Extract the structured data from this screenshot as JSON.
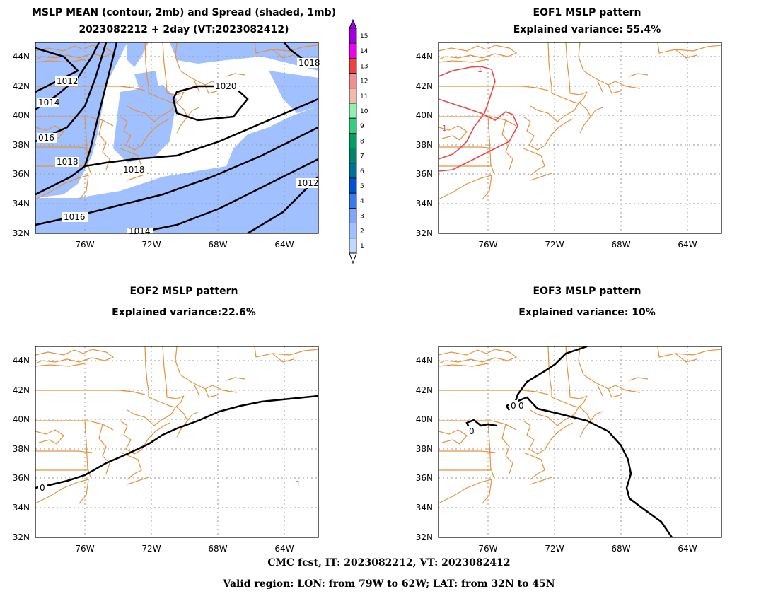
{
  "panels": [
    {
      "title_line1": "MSLP MEAN (contour, 2mb) and Spread (shaded, 1mb)",
      "title_line2": "2023082212 + 2day (VT:2023082412)"
    },
    {
      "title_line1": "EOF1 MSLP pattern",
      "title_line2": "Explained variance: 55.4%"
    },
    {
      "title_line1": "EOF2 MSLP pattern",
      "title_line2": "Explained variance:22.6%"
    },
    {
      "title_line1": "EOF3 MSLP pattern",
      "title_line2": "Explained variance: 10%"
    }
  ],
  "lat_labels": [
    "32N",
    "34N",
    "36N",
    "38N",
    "40N",
    "42N",
    "44N"
  ],
  "lon_labels": [
    "76W",
    "72W",
    "68W",
    "64W"
  ],
  "mean_contours": [
    {
      "value": 1012,
      "label": "1012"
    },
    {
      "value": 1014,
      "label": "1014"
    },
    {
      "value": 1016,
      "label": "1016"
    },
    {
      "value": 1018,
      "label": "1018"
    },
    {
      "value": 1020,
      "label": "1020"
    }
  ],
  "mean_contour_tags": [
    "1012",
    "1014",
    "016",
    "1018",
    "1018",
    "1020",
    "1018",
    "1016",
    "1014",
    "1012"
  ],
  "eof1_labels": [
    "1",
    "1"
  ],
  "eof2_labels": [
    "0",
    "1"
  ],
  "eof3_labels": [
    "0",
    "0",
    "0"
  ],
  "colorbar": {
    "labels": [
      "1",
      "2",
      "3",
      "4",
      "5",
      "6",
      "7",
      "8",
      "9",
      "10",
      "11",
      "12",
      "13",
      "14",
      "15"
    ],
    "colors": [
      "#c0d8ff",
      "#a0c0ff",
      "#80a8f8",
      "#3c78f0",
      "#0050d8",
      "#00709a",
      "#00846a",
      "#00a060",
      "#30d080",
      "#90f0b0",
      "#f4b8b0",
      "#f09090",
      "#f04040",
      "#f000f0",
      "#a000e0"
    ]
  },
  "footer_line1": "CMC fcst, IT: 2023082212, VT: 2023082412",
  "footer_line2": "Valid region: LON: from 79W to 62W; LAT: from 32N to 45N"
}
